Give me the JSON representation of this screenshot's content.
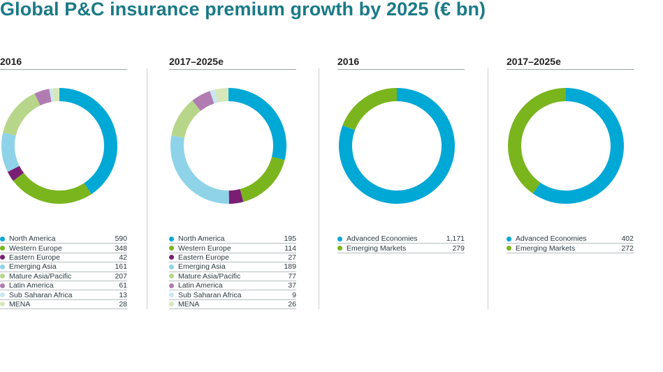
{
  "title": "Global P&C insurance premium growth by 2025 (€ bn)",
  "colors": {
    "North America": "#00a8d6",
    "Western Europe": "#7ab51d",
    "Eastern Europe": "#7a1e74",
    "Emerging Asia": "#8ed3e8",
    "Mature Asia/Pacific": "#b7d68a",
    "Latin America": "#b07cb2",
    "Sub Saharan Africa": "#c7e7f2",
    "MENA": "#d6e8b9",
    "Advanced Economies": "#00a8d6",
    "Emerging Markets": "#7ab51d"
  },
  "chart_data": [
    {
      "type": "pie",
      "title": "2016",
      "categories": [
        "North America",
        "Western Europe",
        "Eastern Europe",
        "Emerging Asia",
        "Mature Asia/Pacific",
        "Latin America",
        "Sub Saharan Africa",
        "MENA"
      ],
      "values": [
        590,
        348,
        42,
        161,
        207,
        61,
        13,
        28
      ],
      "value_labels": [
        "590",
        "348",
        "42",
        "161",
        "207",
        "61",
        "13",
        "28"
      ]
    },
    {
      "type": "pie",
      "title": "2017–2025e",
      "categories": [
        "North America",
        "Western Europe",
        "Eastern Europe",
        "Emerging Asia",
        "Mature Asia/Pacific",
        "Latin America",
        "Sub Saharan Africa",
        "MENA"
      ],
      "values": [
        195,
        114,
        27,
        189,
        77,
        37,
        9,
        26
      ],
      "value_labels": [
        "195",
        "114",
        "27",
        "189",
        "77",
        "37",
        "9",
        "26"
      ]
    },
    {
      "type": "pie",
      "title": "2016",
      "categories": [
        "Advanced Economies",
        "Emerging Markets"
      ],
      "values": [
        1171,
        279
      ],
      "value_labels": [
        "1,171",
        "279"
      ]
    },
    {
      "type": "pie",
      "title": "2017–2025e",
      "categories": [
        "Advanced Economies",
        "Emerging Markets"
      ],
      "values": [
        402,
        272
      ],
      "value_labels": [
        "402",
        "272"
      ]
    }
  ]
}
